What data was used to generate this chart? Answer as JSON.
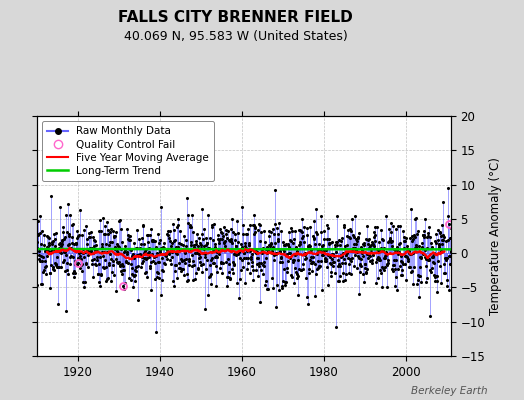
{
  "title": "FALLS CITY BRENNER FIELD",
  "subtitle": "40.069 N, 95.583 W (United States)",
  "ylabel": "Temperature Anomaly (°C)",
  "watermark": "Berkeley Earth",
  "start_year": 1910,
  "end_year": 2012,
  "ylim": [
    -15,
    20
  ],
  "yticks": [
    -15,
    -10,
    -5,
    0,
    5,
    10,
    15,
    20
  ],
  "xticks": [
    1920,
    1940,
    1960,
    1980,
    2000
  ],
  "bg_color": "#d8d8d8",
  "plot_bg_color": "#ffffff",
  "stem_color": "#6666ff",
  "dot_color": "#000000",
  "ma_color": "#ff0000",
  "trend_color": "#00cc00",
  "qc_color": "#ff66cc",
  "title_fontsize": 11,
  "subtitle_fontsize": 9,
  "seed": 17
}
